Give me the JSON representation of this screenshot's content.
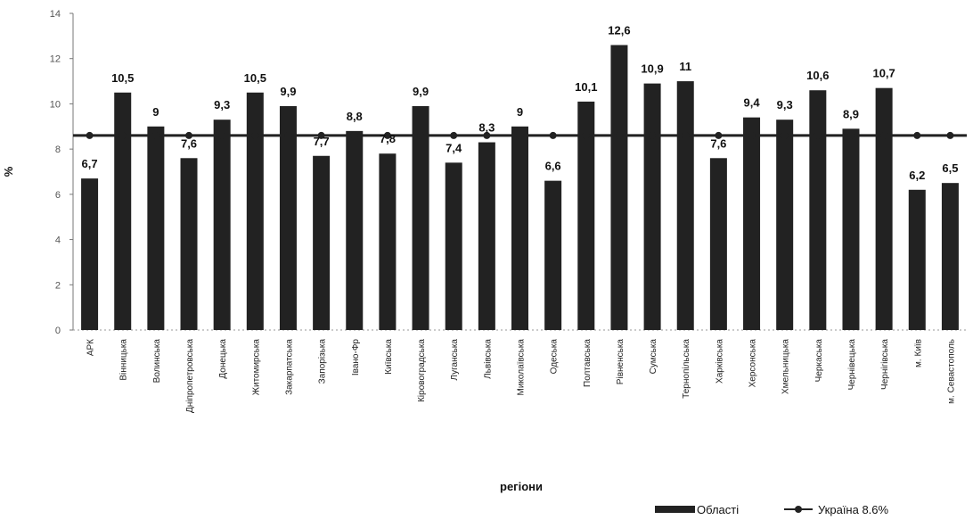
{
  "chart_data": {
    "type": "bar",
    "xlabel": "регіони",
    "ylabel": "%",
    "ylim": [
      0,
      14
    ],
    "yticks": [
      0,
      2,
      4,
      6,
      8,
      10,
      12,
      14
    ],
    "grid": false,
    "legend_position": "bottom-right",
    "categories": [
      "АРК",
      "Вінницька",
      "Волинська",
      "Дніпропетровська",
      "Донецька",
      "Житомирська",
      "Закарпатська",
      "Запорізька",
      "Івано-Фр",
      "Київська",
      "Кіровоградська",
      "Луганська",
      "Львівська",
      "Миколаївська",
      "Одеська",
      "Полтавська",
      "Рівненська",
      "Сумська",
      "Тернопільська",
      "Харківська",
      "Херсонська",
      "Хмельницька",
      "Черкаська",
      "Чернівецька",
      "Чернігівська",
      "м. Київ",
      "м. Севастополь"
    ],
    "series": [
      {
        "name": "Області",
        "color": "#222222",
        "values": [
          6.7,
          10.5,
          9,
          7.6,
          9.3,
          10.5,
          9.9,
          7.7,
          8.8,
          7.8,
          9.9,
          7.4,
          8.3,
          9,
          6.6,
          10.1,
          12.6,
          10.9,
          11,
          7.6,
          9.4,
          9.3,
          10.6,
          8.9,
          10.7,
          6.2,
          6.5
        ]
      },
      {
        "name": "Україна 8.6%",
        "type": "line",
        "color": "#222222",
        "values": [
          8.6,
          8.6,
          8.6,
          8.6,
          8.6,
          8.6,
          8.6,
          8.6,
          8.6,
          8.6,
          8.6,
          8.6,
          8.6,
          8.6,
          8.6,
          8.6,
          8.6,
          8.6,
          8.6,
          8.6,
          8.6,
          8.6,
          8.6,
          8.6,
          8.6,
          8.6,
          8.6
        ]
      }
    ]
  }
}
